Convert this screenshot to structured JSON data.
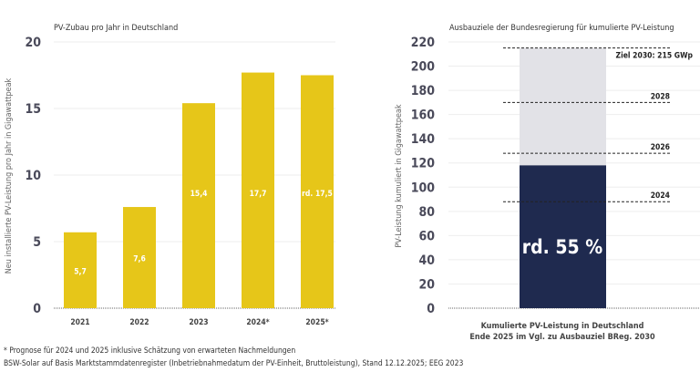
{
  "chart_data": [
    {
      "type": "bar",
      "title": "PV-Zubau pro Jahr in Deutschland",
      "ylabel": "Neu installierte PV-Leistung pro Jahr in Gigawattpeak",
      "xlabel": "",
      "ylim": [
        0,
        20
      ],
      "yticks": [
        0,
        5,
        10,
        15,
        20
      ],
      "grid": true,
      "categories": [
        "2021",
        "2022",
        "2023",
        "2024*",
        "2025*"
      ],
      "values": [
        5.7,
        7.6,
        15.4,
        17.7,
        17.5
      ],
      "data_labels": [
        "5,7",
        "7,6",
        "15,4",
        "17,7",
        "rd. 17,5"
      ],
      "color": "#e6c619"
    },
    {
      "type": "bar",
      "title": "Ausbauziele der Bundesregierung für kumulierte PV-Leistung",
      "ylabel": "PV-Leistung kumuliert in Gigawattpeak",
      "xlabel": "Kumulierte PV-Leistung in Deutschland",
      "xlabel2": "Ende 2025 im Vgl. zu Ausbauziel BReg. 2030",
      "ylim": [
        0,
        220
      ],
      "yticks": [
        0,
        20,
        40,
        60,
        80,
        100,
        120,
        140,
        160,
        180,
        200,
        220
      ],
      "grid": true,
      "values": {
        "actual": 118,
        "target": 215
      },
      "bar_label": "rd. 55 %",
      "targets": [
        {
          "label": "Ziel 2030: 215 GWp",
          "value": 215
        },
        {
          "label": "2028",
          "value": 170
        },
        {
          "label": "2026",
          "value": 128
        },
        {
          "label": "2024",
          "value": 88
        }
      ],
      "colors": {
        "actual": "#1f2a4f",
        "target": "#e2e2e7"
      }
    }
  ],
  "footnotes": {
    "note": "* Prognose für 2024 und 2025 inklusive Schätzung von erwarteten Nachmeldungen",
    "source": "BSW-Solar auf Basis Marktstammdatenregister (Inbetriebnahmedatum der PV-Einheit, Bruttoleistung), Stand 12.12.2025; EEG 2023"
  }
}
